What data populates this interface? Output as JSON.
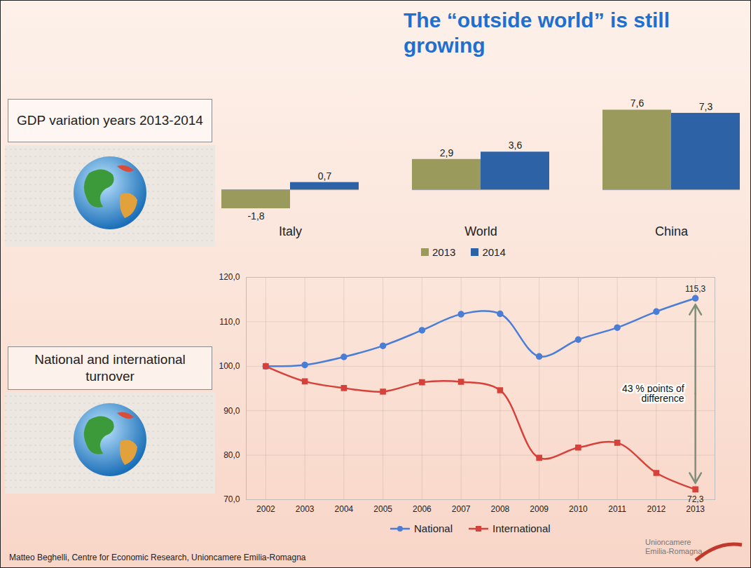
{
  "title": "The “outside world” is still growing",
  "source": "Matteo Beghelli, Centre for Economic Research, Unioncamere Emilia-Romagna",
  "logo": "Unioncamere Emilia-Romagna",
  "chart_data": [
    {
      "type": "bar",
      "title": "GDP variation years 2013-2014",
      "categories": [
        "Italy",
        "World",
        "China"
      ],
      "series": [
        {
          "name": "2013",
          "color": "#9a9a5c",
          "values": [
            -1.8,
            2.9,
            7.6
          ],
          "value_labels": [
            "-1,8",
            "2,9",
            "7,6"
          ]
        },
        {
          "name": "2014",
          "color": "#2e62a6",
          "values": [
            0.7,
            3.6,
            7.3
          ],
          "value_labels": [
            "0,7",
            "3,6",
            "7,3"
          ]
        }
      ],
      "ylim": [
        -3,
        8.5
      ],
      "tick_labels": "x",
      "data_labels": true,
      "legend": "bottom"
    },
    {
      "type": "line",
      "title": "National and international turnover",
      "x": [
        2002,
        2003,
        2004,
        2005,
        2006,
        2007,
        2008,
        2009,
        2010,
        2011,
        2012,
        2013
      ],
      "series": [
        {
          "name": "National",
          "color": "#4a7ed6",
          "marker": "circle",
          "values": [
            100,
            100.3,
            102.1,
            104.6,
            108.1,
            111.7,
            111.8,
            102.2,
            106.0,
            108.7,
            112.3,
            115.3
          ],
          "value_labels": [
            null,
            null,
            null,
            null,
            null,
            null,
            null,
            null,
            null,
            null,
            null,
            "115,3"
          ]
        },
        {
          "name": "International",
          "color": "#d6413a",
          "marker": "square",
          "values": [
            100,
            96.6,
            95.1,
            94.3,
            96.4,
            96.5,
            94.6,
            79.4,
            81.7,
            82.8,
            76.0,
            72.3
          ],
          "value_labels": [
            null,
            null,
            null,
            null,
            null,
            null,
            null,
            null,
            null,
            null,
            null,
            "72,3"
          ]
        }
      ],
      "xlim": [
        2001.5,
        2013.5
      ],
      "xticks": [
        2002,
        2003,
        2004,
        2005,
        2006,
        2007,
        2008,
        2009,
        2010,
        2011,
        2012,
        2013
      ],
      "ylim": [
        70,
        120
      ],
      "yticks": [
        {
          "value": 70,
          "label": "70,0"
        },
        {
          "value": 80,
          "label": "80,0"
        },
        {
          "value": 90,
          "label": "90,0"
        },
        {
          "value": 100,
          "label": "100,0"
        },
        {
          "value": 110,
          "label": "110,0"
        },
        {
          "value": 120,
          "label": "120,0"
        }
      ],
      "grid": true,
      "legend": "bottom",
      "data_labels": true,
      "annotations": [
        {
          "text": "43 % points of difference"
        }
      ]
    }
  ]
}
